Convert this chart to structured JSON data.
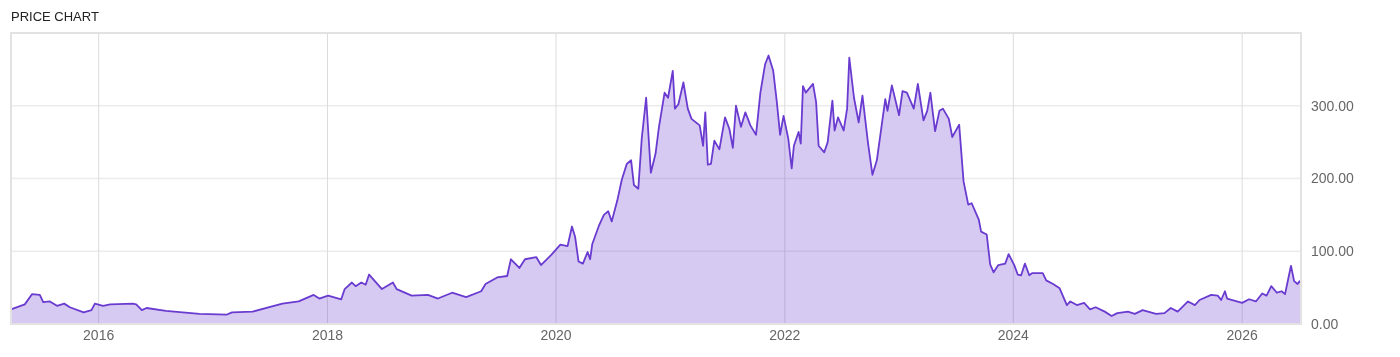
{
  "chart_data": {
    "type": "area",
    "title": "PRICE CHART",
    "x": [
      "2015-03-27",
      "2015-05-10",
      "2015-06-02",
      "2015-06-27",
      "2015-07-08",
      "2015-07-29",
      "2015-08-21",
      "2015-09-13",
      "2015-10-01",
      "2015-11-14",
      "2015-12-09",
      "2015-12-20",
      "2016-01-15",
      "2016-02-07",
      "2016-04-19",
      "2016-04-30",
      "2016-05-18",
      "2016-06-02",
      "2016-08-03",
      "2016-11-18",
      "2017-02-14",
      "2017-03-02",
      "2017-05-07",
      "2017-08-10",
      "2017-10-01",
      "2017-11-18",
      "2017-12-06",
      "2018-01-03",
      "2018-02-14",
      "2018-02-25",
      "2018-03-20",
      "2018-04-01",
      "2018-04-19",
      "2018-05-03",
      "2018-05-14",
      "2018-06-24",
      "2018-07-29",
      "2018-08-10",
      "2018-09-27",
      "2018-11-18",
      "2018-12-20",
      "2019-02-03",
      "2019-03-20",
      "2019-05-07",
      "2019-05-21",
      "2019-06-27",
      "2019-07-29",
      "2019-08-10",
      "2019-09-06",
      "2019-09-24",
      "2019-10-30",
      "2019-11-14",
      "2019-12-17",
      "2020-01-15",
      "2020-02-07",
      "2020-02-21",
      "2020-03-02",
      "2020-03-13",
      "2020-03-27",
      "2020-04-11",
      "2020-04-19",
      "2020-04-26",
      "2020-05-18",
      "2020-06-02",
      "2020-06-16",
      "2020-06-27",
      "2020-07-15",
      "2020-07-29",
      "2020-08-14",
      "2020-08-28",
      "2020-09-06",
      "2020-09-20",
      "2020-10-01",
      "2020-10-15",
      "2020-10-30",
      "2020-11-14",
      "2020-11-25",
      "2020-12-13",
      "2020-12-24",
      "2021-01-08",
      "2021-01-15",
      "2021-01-26",
      "2021-02-11",
      "2021-02-25",
      "2021-03-09",
      "2021-04-04",
      "2021-04-15",
      "2021-04-22",
      "2021-04-30",
      "2021-05-10",
      "2021-05-21",
      "2021-06-06",
      "2021-06-24",
      "2021-07-08",
      "2021-07-19",
      "2021-07-29",
      "2021-08-14",
      "2021-08-28",
      "2021-09-13",
      "2021-10-01",
      "2021-10-15",
      "2021-10-30",
      "2021-11-10",
      "2021-11-25",
      "2021-12-06",
      "2021-12-17",
      "2021-12-28",
      "2022-01-12",
      "2022-01-23",
      "2022-01-30",
      "2022-02-14",
      "2022-02-21",
      "2022-02-28",
      "2022-03-09",
      "2022-04-01",
      "2022-04-11",
      "2022-04-19",
      "2022-05-07",
      "2022-05-18",
      "2022-06-02",
      "2022-06-09",
      "2022-06-20",
      "2022-07-08",
      "2022-07-19",
      "2022-07-26",
      "2022-08-10",
      "2022-08-25",
      "2022-09-06",
      "2022-09-24",
      "2022-10-08",
      "2022-10-22",
      "2022-11-18",
      "2022-11-25",
      "2022-12-09",
      "2023-01-01",
      "2023-01-12",
      "2023-01-26",
      "2023-02-17",
      "2023-03-02",
      "2023-03-20",
      "2023-04-01",
      "2023-04-11",
      "2023-04-26",
      "2023-05-10",
      "2023-05-21",
      "2023-06-09",
      "2023-06-20",
      "2023-07-12",
      "2023-07-26",
      "2023-08-10",
      "2023-08-21",
      "2023-09-13",
      "2023-09-20",
      "2023-10-08",
      "2023-10-19",
      "2023-10-30",
      "2023-11-14",
      "2023-12-06",
      "2023-12-17",
      "2024-01-04",
      "2024-01-15",
      "2024-01-26",
      "2024-02-07",
      "2024-02-21",
      "2024-03-02",
      "2024-04-04",
      "2024-04-15",
      "2024-05-07",
      "2024-05-28",
      "2024-06-20",
      "2024-07-01",
      "2024-07-22",
      "2024-08-14",
      "2024-09-02",
      "2024-09-20",
      "2024-10-19",
      "2024-11-10",
      "2024-11-28",
      "2025-01-01",
      "2025-01-23",
      "2025-02-17",
      "2025-04-01",
      "2025-04-28",
      "2025-05-18",
      "2025-06-09",
      "2025-07-12",
      "2025-08-03",
      "2025-08-18",
      "2025-09-24",
      "2025-10-15",
      "2025-10-26",
      "2025-11-07",
      "2025-11-14",
      "2026-01-01",
      "2026-01-23",
      "2026-02-14",
      "2026-03-06",
      "2026-03-20",
      "2026-04-04",
      "2026-04-22",
      "2026-05-07",
      "2026-05-18",
      "2026-06-06",
      "2026-06-16",
      "2026-06-27",
      "2026-07-04",
      "2026-07-08"
    ],
    "series": [
      {
        "color": "#6a3bd0",
        "values": [
          20,
          27,
          41,
          40,
          30,
          31,
          25,
          28,
          23,
          16,
          19,
          28,
          25,
          27,
          28,
          27,
          19,
          22,
          18,
          14,
          13,
          16,
          17,
          28,
          31,
          40,
          35,
          39,
          34,
          48,
          57,
          52,
          57,
          54,
          68,
          48,
          57,
          48,
          39,
          40,
          35,
          43,
          37,
          45,
          55,
          64,
          66,
          89,
          77,
          89,
          92,
          81,
          95,
          109,
          107,
          134,
          120,
          86,
          83,
          99,
          89,
          110,
          136,
          150,
          155,
          141,
          170,
          198,
          220,
          225,
          191,
          186,
          255,
          311,
          208,
          234,
          271,
          318,
          311,
          348,
          296,
          302,
          332,
          296,
          282,
          273,
          245,
          291,
          219,
          220,
          252,
          240,
          284,
          268,
          242,
          300,
          271,
          291,
          273,
          260,
          318,
          357,
          369,
          348,
          307,
          260,
          286,
          255,
          214,
          245,
          264,
          248,
          327,
          318,
          330,
          305,
          245,
          236,
          250,
          307,
          266,
          284,
          266,
          296,
          366,
          311,
          277,
          314,
          248,
          205,
          225,
          309,
          293,
          328,
          287,
          320,
          318,
          296,
          330,
          280,
          293,
          318,
          265,
          293,
          296,
          282,
          257,
          274,
          196,
          164,
          166,
          143,
          127,
          123,
          82,
          71,
          81,
          83,
          96,
          81,
          68,
          67,
          83,
          67,
          70,
          70,
          60,
          55,
          49,
          26,
          31,
          26,
          29,
          20,
          23,
          17,
          11,
          15,
          17,
          14,
          19,
          14,
          15,
          22,
          17,
          31,
          26,
          33,
          40,
          39,
          33,
          45,
          35,
          29,
          34,
          31,
          42,
          39,
          52,
          43,
          45,
          41,
          80,
          59,
          55,
          59,
          55
        ]
      }
    ],
    "xlim": [
      "2015-03-27",
      "2026-07-08"
    ],
    "xticks": [
      {
        "value": "2016-01-01",
        "label": "2016"
      },
      {
        "value": "2018-01-01",
        "label": "2018"
      },
      {
        "value": "2020-01-01",
        "label": "2020"
      },
      {
        "value": "2022-01-01",
        "label": "2022"
      },
      {
        "value": "2024-01-01",
        "label": "2024"
      },
      {
        "value": "2026-01-01",
        "label": "2026"
      }
    ],
    "ylim": [
      0,
      400
    ],
    "yticks": [
      {
        "value": 0,
        "label": "0.00"
      },
      {
        "value": 100,
        "label": "100.00"
      },
      {
        "value": 200,
        "label": "200.00"
      },
      {
        "value": 300,
        "label": "300.00"
      }
    ],
    "grid": true
  }
}
